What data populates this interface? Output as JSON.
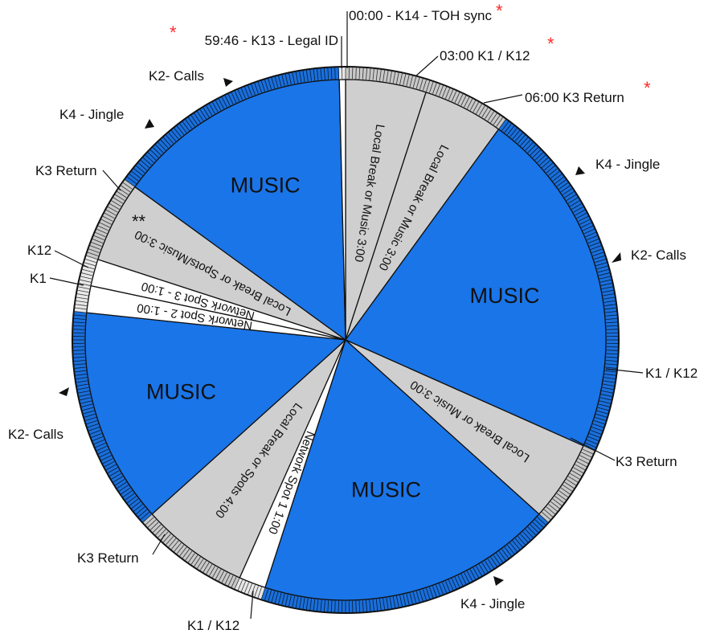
{
  "colors": {
    "music": "#1a75e8",
    "music_ring": "#1a6fdb",
    "break": "#cfcfcf",
    "break_ring": "#c8c8c8",
    "network": "#ffffff",
    "star": "#ff2a2a",
    "tick": "#000000"
  },
  "segments": [
    {
      "type": "break",
      "label": "Local Break or Music 3:00",
      "start": 0,
      "end": 3
    },
    {
      "type": "break",
      "label": "Local Break or Music 3:00",
      "start": 3,
      "end": 6
    },
    {
      "type": "music",
      "label": "MUSIC",
      "start": 6,
      "end": 19
    },
    {
      "type": "break",
      "label": "Local Break or Music 3:00",
      "start": 19,
      "end": 22
    },
    {
      "type": "music",
      "label": "MUSIC",
      "start": 22,
      "end": 33
    },
    {
      "type": "network",
      "label": "Network Spot 1 1:00",
      "start": 33,
      "end": 34
    },
    {
      "type": "break",
      "label": "Local Break or Spots 4:00",
      "start": 34,
      "end": 38
    },
    {
      "type": "music",
      "label": "MUSIC",
      "start": 38,
      "end": 46
    },
    {
      "type": "network",
      "label": "Network Spot 2 - 1:00",
      "start": 46,
      "end": 47
    },
    {
      "type": "network",
      "label": "Network Spot 3 - 1:00",
      "start": 47,
      "end": 48
    },
    {
      "type": "break",
      "label": "Local Break or Spots/Music 3:00",
      "start": 48,
      "end": 51
    },
    {
      "type": "music",
      "label": "MUSIC",
      "start": 51,
      "end": 59.77
    },
    {
      "type": "network",
      "label": "",
      "start": 59.77,
      "end": 60
    }
  ],
  "double_star": "**",
  "callouts": {
    "toh": "00:00 - K14 - TOH sync",
    "legal_id": "59:46 - K13 - Legal ID",
    "k1k12_top": "03:00 K1 / K12",
    "k3_return_top": "06:00 K3 Return",
    "k1k12_right": "K1 / K12",
    "k3_return_right": "K3 Return",
    "k1k12_bottom": "K1 / K12",
    "k3_return_bottom_left": "K3 Return",
    "k1_left": "K1",
    "k12_left": "K12",
    "k3_return_left": "K3 Return"
  },
  "markers": {
    "k2_calls_top": "K2- Calls",
    "k4_jingle_topleft": "K4 - Jingle",
    "k4_jingle_topright": "K4 - Jingle",
    "k2_calls_right": "K2- Calls",
    "k2_calls_left": "K2- Calls",
    "k4_jingle_bottom": "K4 - Jingle"
  },
  "star": "*"
}
